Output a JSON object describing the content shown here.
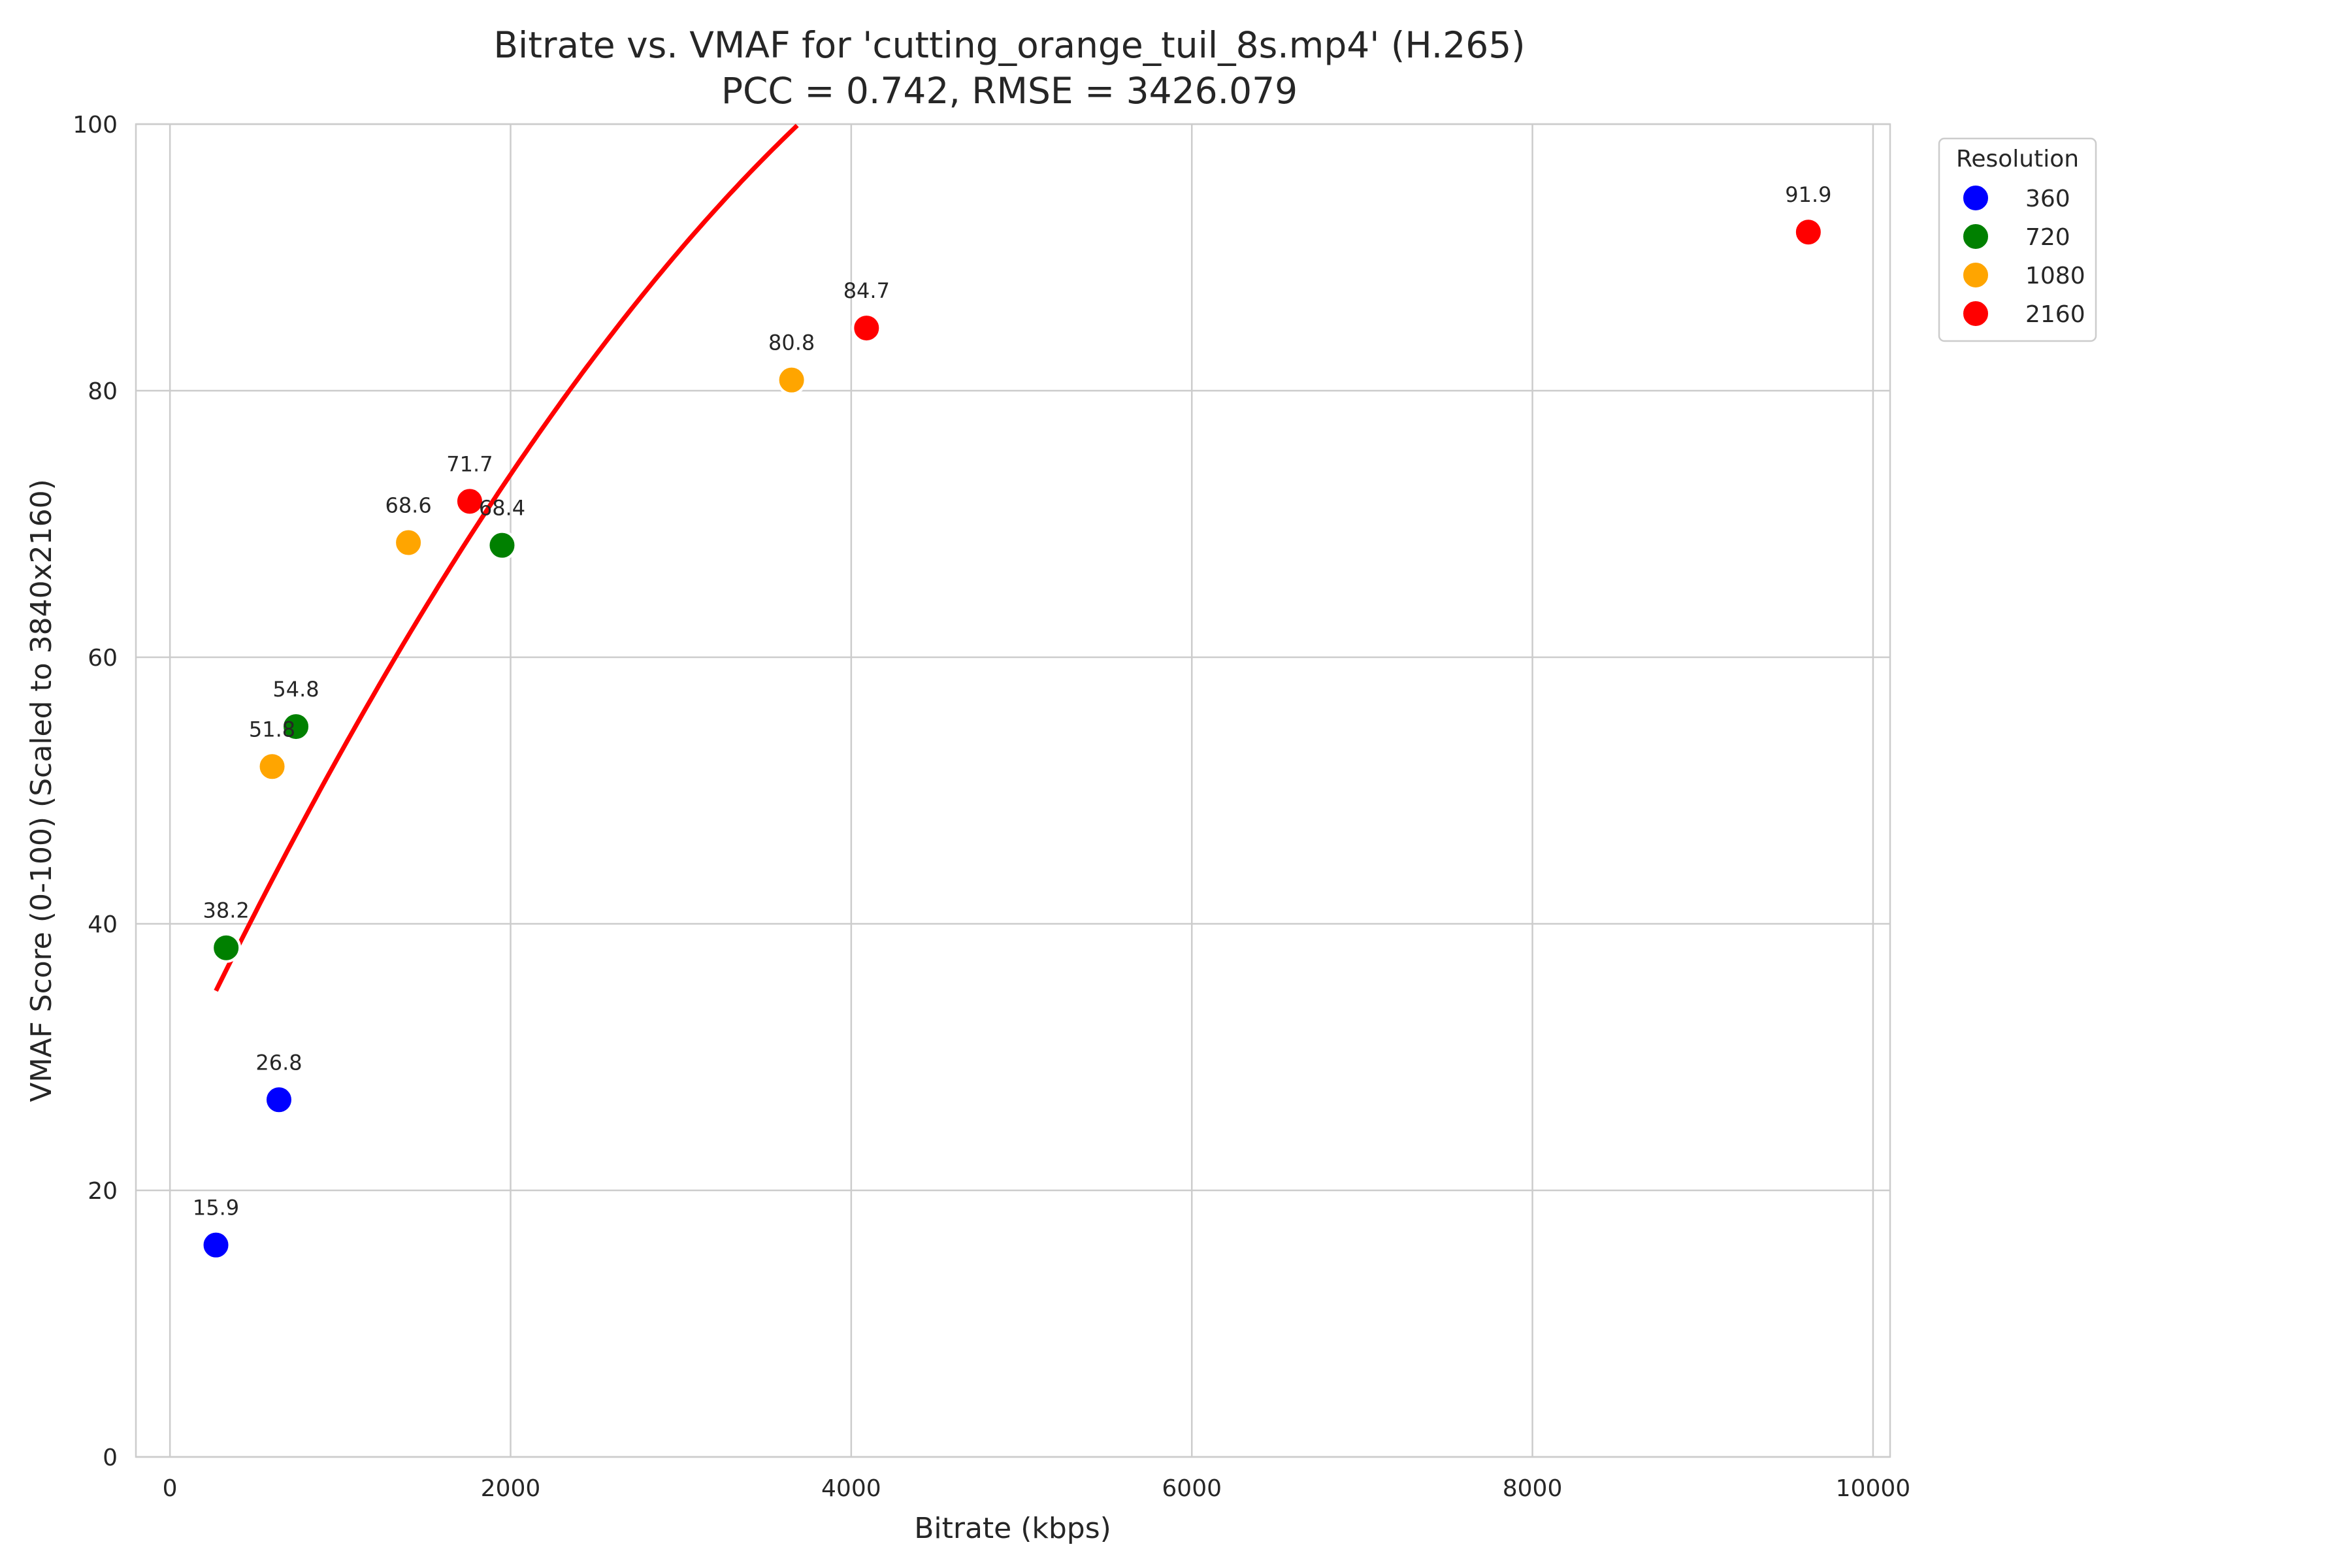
{
  "chart_data": {
    "type": "scatter",
    "title_line1": "Bitrate vs. VMAF for 'cutting_orange_tuil_8s.mp4' (H.265)",
    "title_line2": "PCC = 0.742, RMSE = 3426.079",
    "xlabel": "Bitrate (kbps)",
    "ylabel": "VMAF Score (0-100) (Scaled to 3840x2160)",
    "xlim": [
      -200,
      10100
    ],
    "ylim": [
      0,
      100
    ],
    "x_ticks": [
      0,
      2000,
      4000,
      6000,
      8000,
      10000
    ],
    "y_ticks": [
      0,
      20,
      40,
      60,
      80,
      100
    ],
    "grid": true,
    "legend": {
      "title": "Resolution",
      "placement": "upper right, outside axes",
      "entries": [
        {
          "label": "360",
          "color": "#0000ff"
        },
        {
          "label": "720",
          "color": "#008000"
        },
        {
          "label": "1080",
          "color": "#ffa500"
        },
        {
          "label": "2160",
          "color": "#ff0000"
        }
      ]
    },
    "series": [
      {
        "name": "360",
        "color": "#0000ff",
        "points": [
          {
            "x": 270,
            "y": 15.9,
            "label": "15.9"
          },
          {
            "x": 640,
            "y": 26.8,
            "label": "26.8"
          }
        ]
      },
      {
        "name": "720",
        "color": "#008000",
        "points": [
          {
            "x": 330,
            "y": 38.2,
            "label": "38.2"
          },
          {
            "x": 740,
            "y": 54.8,
            "label": "54.8"
          },
          {
            "x": 1950,
            "y": 68.4,
            "label": "68.4"
          }
        ]
      },
      {
        "name": "1080",
        "color": "#ffa500",
        "points": [
          {
            "x": 600,
            "y": 51.8,
            "label": "51.8"
          },
          {
            "x": 1400,
            "y": 68.6,
            "label": "68.6"
          },
          {
            "x": 3650,
            "y": 80.8,
            "label": "80.8"
          }
        ]
      },
      {
        "name": "2160",
        "color": "#ff0000",
        "points": [
          {
            "x": 1760,
            "y": 71.7,
            "label": "71.7"
          },
          {
            "x": 4090,
            "y": 84.7,
            "label": "84.7"
          },
          {
            "x": 9620,
            "y": 91.9,
            "label": "91.9"
          }
        ]
      }
    ],
    "fit_curve": {
      "type": "quadratic",
      "color": "#ff0000",
      "x_range": [
        270,
        9620
      ],
      "coefficients": {
        "a": -2e-06,
        "b": 0.02693,
        "c": 27.85
      }
    }
  }
}
